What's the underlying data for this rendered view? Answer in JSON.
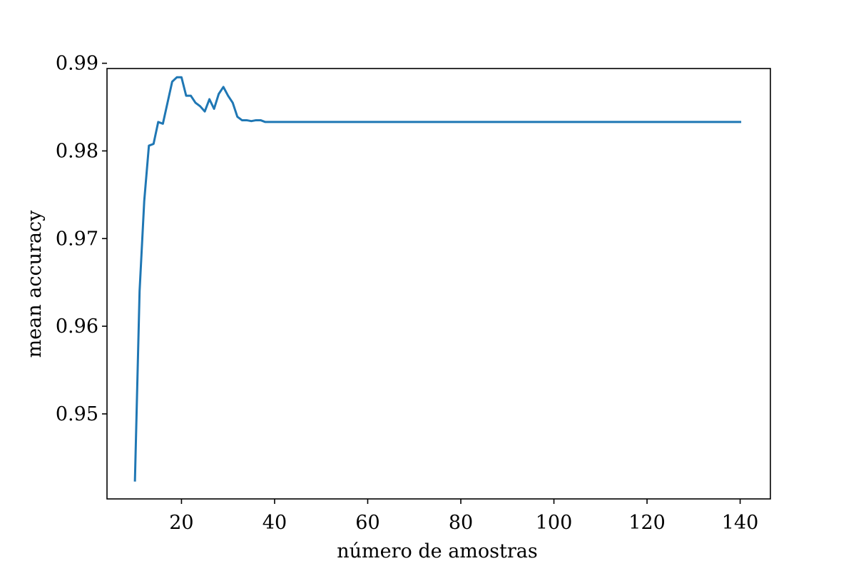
{
  "chart_data": {
    "type": "line",
    "xlabel": "número de amostras",
    "ylabel": "mean accuracy",
    "xlim": [
      4,
      146.5
    ],
    "ylim": [
      0.9403,
      0.9894
    ],
    "xticks": [
      20,
      40,
      60,
      80,
      100,
      120,
      140
    ],
    "xtick_labels": [
      "20",
      "40",
      "60",
      "80",
      "100",
      "120",
      "140"
    ],
    "yticks": [
      0.95,
      0.96,
      0.97,
      0.98,
      0.99
    ],
    "ytick_labels": [
      "0.95",
      "0.96",
      "0.97",
      "0.98",
      "0.99"
    ],
    "grid": false,
    "line_color": "#1f77b4",
    "series": [
      {
        "x": [
          10,
          11,
          12,
          13,
          14,
          15,
          16,
          17,
          18,
          19,
          20,
          21,
          22,
          23,
          24,
          25,
          26,
          27,
          28,
          29,
          30,
          31,
          32,
          33,
          34,
          35,
          36,
          37,
          38,
          39,
          40,
          50,
          60,
          70,
          80,
          90,
          100,
          110,
          120,
          130,
          140
        ],
        "y": [
          0.9424,
          0.964,
          0.9743,
          0.9806,
          0.9808,
          0.9833,
          0.9831,
          0.9855,
          0.9879,
          0.9884,
          0.9884,
          0.9863,
          0.9863,
          0.9855,
          0.9851,
          0.9845,
          0.9859,
          0.9848,
          0.9865,
          0.9873,
          0.9863,
          0.9855,
          0.9839,
          0.9835,
          0.9835,
          0.9834,
          0.9835,
          0.9835,
          0.9833,
          0.9833,
          0.9833,
          0.9833,
          0.9833,
          0.9833,
          0.9833,
          0.9833,
          0.9833,
          0.9833,
          0.9833,
          0.9833,
          0.9833
        ]
      }
    ]
  }
}
